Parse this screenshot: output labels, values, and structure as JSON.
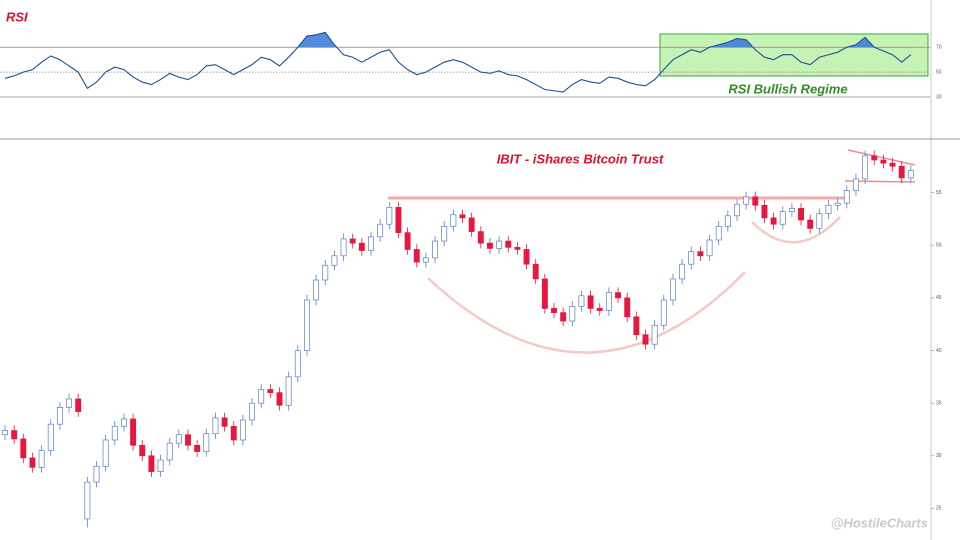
{
  "watermark": "@HostileCharts",
  "chart_data": [
    {
      "type": "line",
      "title": "RSI",
      "annotation": "RSI Bullish Regime",
      "color": "#1f4f8f",
      "overbought_fill": "#3f7fd6",
      "ylim": [
        -3,
        104
      ],
      "yticks": [
        30,
        50,
        70
      ],
      "values": [
        45,
        47,
        50,
        52,
        58,
        63,
        60,
        55,
        50,
        37,
        42,
        50,
        54,
        52,
        46,
        42,
        40,
        44,
        49,
        46,
        44,
        48,
        55,
        56,
        52,
        48,
        52,
        56,
        62,
        60,
        55,
        62,
        70,
        79,
        80,
        82,
        72,
        64,
        62,
        58,
        62,
        66,
        68,
        58,
        52,
        48,
        50,
        54,
        58,
        60,
        58,
        54,
        50,
        49,
        51,
        48,
        47,
        44,
        40,
        36,
        35,
        34,
        40,
        44,
        42,
        41,
        46,
        45,
        42,
        40,
        39,
        44,
        52,
        60,
        64,
        68,
        66,
        70,
        72,
        74,
        77,
        76,
        68,
        62,
        60,
        64,
        64,
        58,
        56,
        62,
        64,
        66,
        70,
        72,
        78,
        70,
        67,
        64,
        58,
        64
      ]
    },
    {
      "type": "candlestick",
      "title": "IBIT - iShares Bitcoin Trust",
      "up_color": "#5b7fc0",
      "down_color": "#e8173f",
      "ylim": [
        22,
        60
      ],
      "yticks": [
        25,
        30,
        35,
        40,
        45,
        50,
        55
      ],
      "open": [
        32.0,
        32.4,
        31.6,
        29.8,
        28.9,
        30.5,
        33.0,
        34.6,
        35.4,
        24.0,
        27.5,
        29.0,
        31.5,
        32.8,
        33.5,
        31.0,
        30.0,
        28.5,
        29.6,
        31.2,
        32.0,
        31.0,
        30.4,
        32.1,
        33.6,
        32.8,
        31.5,
        33.4,
        35.0,
        36.3,
        36.0,
        34.8,
        37.5,
        40.0,
        44.8,
        46.7,
        48.1,
        49.0,
        50.6,
        50.2,
        49.5,
        50.8,
        52.0,
        53.6,
        51.2,
        49.6,
        48.4,
        48.8,
        50.4,
        51.8,
        52.9,
        52.6,
        51.3,
        50.2,
        49.7,
        50.4,
        49.8,
        49.6,
        48.2,
        46.8,
        44.0,
        43.6,
        42.8,
        44.2,
        45.2,
        44.0,
        43.8,
        45.5,
        45.0,
        43.2,
        41.5,
        40.6,
        42.4,
        44.8,
        46.8,
        48.2,
        49.4,
        49.0,
        50.5,
        51.8,
        52.8,
        53.9,
        54.6,
        53.8,
        52.6,
        52.0,
        53.2,
        53.5,
        52.4,
        51.6,
        53.0,
        53.8,
        54.0,
        55.2,
        56.3,
        58.5,
        58.1,
        57.8,
        57.5,
        56.4
      ],
      "high": [
        32.9,
        32.9,
        32.1,
        30.3,
        31.0,
        33.5,
        35.1,
        35.9,
        35.9,
        28.0,
        29.5,
        32.0,
        33.3,
        34.0,
        34.0,
        31.5,
        30.5,
        30.1,
        31.7,
        32.5,
        32.5,
        31.5,
        32.6,
        34.1,
        34.1,
        33.3,
        33.9,
        35.5,
        36.8,
        36.8,
        36.5,
        38.0,
        40.5,
        45.3,
        47.2,
        48.6,
        49.5,
        51.1,
        51.1,
        50.7,
        51.3,
        52.5,
        54.1,
        54.1,
        51.7,
        50.1,
        49.3,
        50.9,
        52.3,
        53.4,
        53.4,
        53.1,
        51.8,
        50.7,
        50.9,
        50.9,
        50.3,
        50.1,
        48.7,
        47.3,
        44.5,
        44.1,
        44.7,
        45.7,
        45.7,
        44.5,
        46.0,
        46.0,
        45.5,
        43.7,
        42.0,
        42.9,
        45.3,
        47.3,
        48.7,
        49.9,
        49.9,
        51.0,
        52.3,
        53.3,
        54.4,
        55.1,
        55.1,
        54.3,
        53.1,
        53.7,
        54.0,
        54.0,
        52.9,
        53.5,
        54.3,
        54.5,
        55.7,
        56.8,
        59.0,
        59.0,
        58.6,
        58.3,
        58.0,
        57.6
      ],
      "low": [
        31.5,
        31.1,
        29.3,
        28.4,
        28.4,
        30.0,
        32.5,
        34.1,
        33.7,
        23.2,
        27.0,
        28.5,
        31.0,
        32.3,
        30.5,
        29.5,
        28.0,
        28.0,
        29.1,
        30.7,
        30.5,
        29.9,
        29.9,
        31.6,
        32.3,
        31.0,
        31.0,
        32.9,
        34.5,
        35.5,
        34.3,
        34.3,
        37.0,
        39.5,
        44.3,
        46.2,
        47.6,
        48.5,
        49.7,
        49.0,
        49.0,
        50.3,
        51.5,
        50.7,
        49.1,
        47.9,
        47.9,
        48.3,
        49.9,
        51.3,
        52.1,
        50.8,
        49.7,
        49.2,
        49.2,
        49.3,
        49.1,
        47.7,
        46.3,
        43.5,
        43.1,
        42.3,
        42.3,
        43.7,
        43.5,
        43.3,
        43.3,
        44.5,
        42.7,
        41.0,
        40.1,
        40.1,
        41.9,
        44.3,
        46.3,
        47.7,
        48.5,
        48.5,
        50.0,
        51.3,
        52.3,
        53.4,
        53.3,
        52.1,
        51.5,
        51.5,
        52.7,
        51.9,
        51.1,
        51.1,
        52.5,
        53.3,
        53.5,
        54.7,
        55.8,
        57.6,
        57.3,
        57.0,
        55.9,
        55.9
      ],
      "close": [
        32.4,
        31.6,
        29.8,
        28.9,
        30.5,
        33.0,
        34.6,
        35.4,
        34.2,
        27.5,
        29.0,
        31.5,
        32.8,
        33.5,
        31.0,
        30.0,
        28.5,
        29.6,
        31.2,
        32.0,
        31.0,
        30.4,
        32.1,
        33.6,
        32.8,
        31.5,
        33.4,
        35.0,
        36.3,
        36.0,
        34.8,
        37.5,
        40.0,
        44.8,
        46.7,
        48.1,
        49.0,
        50.6,
        50.2,
        49.5,
        50.8,
        52.0,
        53.6,
        51.2,
        49.6,
        48.4,
        48.8,
        50.4,
        51.8,
        52.9,
        52.6,
        51.3,
        50.2,
        49.7,
        50.4,
        49.8,
        49.6,
        48.2,
        46.8,
        44.0,
        43.6,
        42.8,
        44.2,
        45.2,
        44.0,
        43.8,
        45.5,
        45.0,
        43.2,
        41.5,
        40.6,
        42.4,
        44.8,
        46.8,
        48.2,
        49.4,
        49.0,
        50.5,
        51.8,
        52.8,
        53.9,
        54.6,
        53.8,
        52.6,
        52.0,
        53.2,
        53.5,
        52.4,
        51.6,
        53.0,
        53.8,
        54.0,
        55.2,
        56.3,
        58.5,
        58.1,
        57.8,
        57.5,
        56.4,
        57.1
      ]
    }
  ]
}
